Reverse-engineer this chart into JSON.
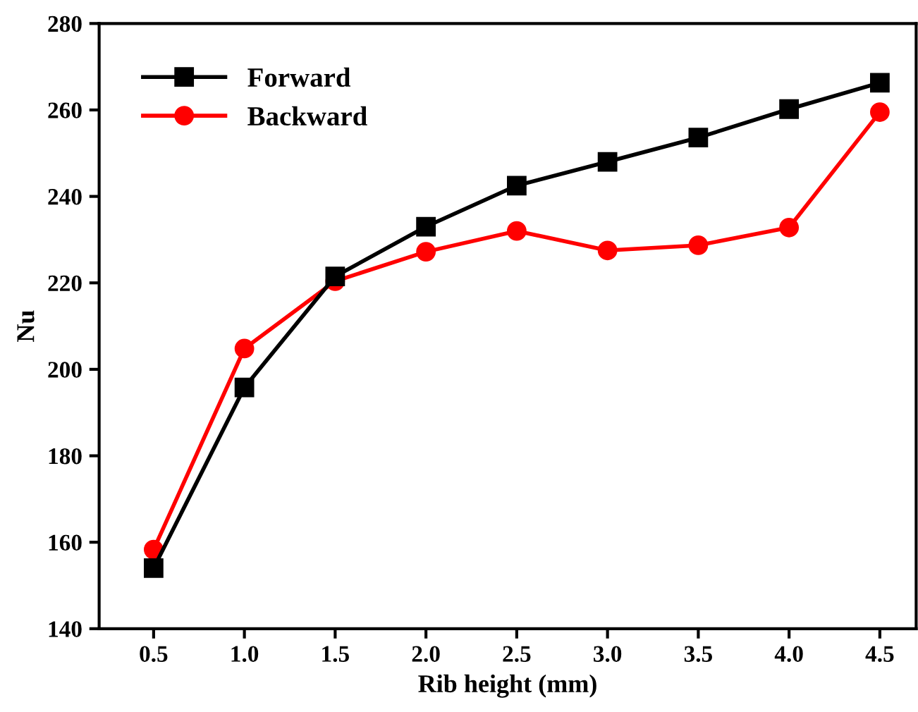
{
  "chart_data": {
    "type": "line",
    "xlabel": "Rib height (mm)",
    "ylabel": "Nu",
    "x": [
      0.5,
      1.0,
      1.5,
      2.0,
      2.5,
      3.0,
      3.5,
      4.0,
      4.5
    ],
    "series": [
      {
        "name": "Forward",
        "color": "#000000",
        "marker": "square",
        "values": [
          154.0,
          195.8,
          221.5,
          233.0,
          242.5,
          248.0,
          253.6,
          260.2,
          266.3
        ]
      },
      {
        "name": "Backward",
        "color": "#ff0000",
        "marker": "circle",
        "values": [
          158.3,
          204.8,
          220.4,
          227.2,
          232.0,
          227.5,
          228.7,
          232.8,
          259.5
        ]
      }
    ],
    "xlim": [
      0.2,
      4.7
    ],
    "ylim": [
      140,
      280
    ],
    "xticks": [
      {
        "value": 0.5,
        "label": "0.5"
      },
      {
        "value": 1.0,
        "label": "1.0"
      },
      {
        "value": 1.5,
        "label": "1.5"
      },
      {
        "value": 2.0,
        "label": "2.0"
      },
      {
        "value": 2.5,
        "label": "2.5"
      },
      {
        "value": 3.0,
        "label": "3.0"
      },
      {
        "value": 3.5,
        "label": "3.5"
      },
      {
        "value": 4.0,
        "label": "4.0"
      },
      {
        "value": 4.5,
        "label": "4.5"
      }
    ],
    "yticks": [
      140,
      160,
      180,
      200,
      220,
      240,
      260,
      280
    ],
    "legend": "top left",
    "grid": false,
    "line_style": "solid"
  }
}
